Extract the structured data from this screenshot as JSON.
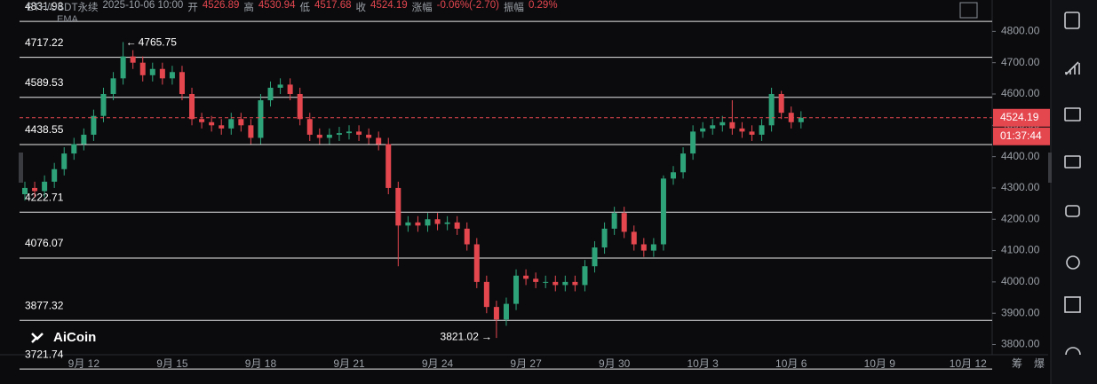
{
  "header": {
    "symbol": "ETH/USDT永续",
    "time": "2025-10-06 10:00",
    "fields": [
      {
        "label": "开",
        "value": 4526.89
      },
      {
        "label": "高",
        "value": 4530.94
      },
      {
        "label": "低",
        "value": 4517.68
      },
      {
        "label": "收",
        "value": 4524.19
      },
      {
        "label": "涨幅",
        "value": "-0.06%(-2.70)"
      },
      {
        "label": "振幅",
        "value": "0.29%"
      }
    ],
    "indicator": "EMA"
  },
  "logo": "AiCoin",
  "corner": [
    "筹",
    "爆"
  ],
  "chart_data": {
    "type": "candlestick",
    "categories": [
      null,
      null,
      null,
      null,
      null,
      null,
      "9月 12",
      null,
      null,
      null,
      null,
      null,
      null,
      null,
      null,
      "9月 15",
      null,
      null,
      null,
      null,
      null,
      null,
      null,
      null,
      "9月 18",
      null,
      null,
      null,
      null,
      null,
      null,
      null,
      null,
      "9月 21",
      null,
      null,
      null,
      null,
      null,
      null,
      null,
      null,
      "9月 24",
      null,
      null,
      null,
      null,
      null,
      null,
      null,
      null,
      "9月 27",
      null,
      null,
      null,
      null,
      null,
      null,
      null,
      null,
      "9月 30",
      null,
      null,
      null,
      null,
      null,
      null,
      null,
      null,
      "10月 3",
      null,
      null,
      null,
      null,
      null,
      null,
      null,
      null,
      "10月 6",
      null,
      null,
      null,
      null,
      null,
      null,
      null,
      null,
      "10月 9",
      null,
      null,
      null,
      null,
      null,
      null,
      null,
      null,
      "10月 12",
      null,
      null
    ],
    "open": [
      4280,
      4300,
      4290,
      4320,
      4360,
      4410,
      4440,
      4470,
      4530,
      4600,
      4650,
      4720,
      4700,
      4660,
      4680,
      4650,
      4670,
      4600,
      4520,
      4510,
      4500,
      4490,
      4520,
      4500,
      4460,
      4580,
      4620,
      4630,
      4600,
      4520,
      4470,
      4460,
      4470,
      4475,
      4480,
      4470,
      4460,
      4440,
      4300,
      4180,
      4190,
      4180,
      4200,
      4185,
      4190,
      4170,
      4120,
      4000,
      3920,
      3880,
      3930,
      4020,
      4010,
      4000,
      4000,
      3990,
      4000,
      3990,
      4050,
      4110,
      4170,
      4220,
      4160,
      4120,
      4100,
      4120,
      4330,
      4350,
      4410,
      4480,
      4490,
      4500,
      4510,
      4490,
      4480,
      4470,
      4500,
      4600,
      4540,
      4510,
      null,
      null,
      null,
      null,
      null,
      null,
      null,
      null,
      null,
      null,
      null,
      null,
      null,
      null,
      null,
      null,
      null,
      null,
      null
    ],
    "high": [
      4320,
      4320,
      4340,
      4380,
      4430,
      4460,
      4490,
      4550,
      4620,
      4670,
      4765.75,
      4740,
      4720,
      4700,
      4700,
      4690,
      4690,
      4620,
      4540,
      4530,
      4520,
      4540,
      4540,
      4520,
      4600,
      4640,
      4650,
      4650,
      4620,
      4540,
      4490,
      4490,
      4495,
      4500,
      4500,
      4490,
      4480,
      4460,
      4320,
      4210,
      4210,
      4220,
      4220,
      4210,
      4210,
      4190,
      4140,
      4020,
      3940,
      3950,
      4040,
      4040,
      4030,
      4020,
      4020,
      4020,
      4020,
      4070,
      4130,
      4190,
      4240,
      4240,
      4180,
      4140,
      4140,
      4340,
      4370,
      4430,
      4500,
      4510,
      4520,
      4530,
      4580,
      4510,
      4500,
      4520,
      4620,
      4610,
      4560,
      4545,
      null,
      null,
      null,
      null,
      null,
      null,
      null,
      null,
      null,
      null,
      null,
      null,
      null,
      null,
      null,
      null,
      null,
      null,
      null
    ],
    "low": [
      4260,
      4270,
      4270,
      4300,
      4340,
      4390,
      4420,
      4450,
      4510,
      4580,
      4630,
      4680,
      4640,
      4640,
      4630,
      4630,
      4580,
      4500,
      4490,
      4480,
      4470,
      4470,
      4480,
      4440,
      4440,
      4560,
      4600,
      4580,
      4500,
      4450,
      4440,
      4440,
      4450,
      4455,
      4450,
      4440,
      4420,
      4280,
      4050,
      4160,
      4160,
      4160,
      4165,
      4165,
      4150,
      4100,
      3980,
      3900,
      3821.02,
      3860,
      3910,
      3990,
      3980,
      3980,
      3970,
      3970,
      3970,
      3970,
      4030,
      4090,
      4150,
      4140,
      4100,
      4080,
      4080,
      4100,
      4310,
      4330,
      4390,
      4460,
      4470,
      4480,
      4470,
      4460,
      4450,
      4450,
      4480,
      4520,
      4490,
      4490,
      null,
      null,
      null,
      null,
      null,
      null,
      null,
      null,
      null,
      null,
      null,
      null,
      null,
      null,
      null,
      null,
      null,
      null,
      null
    ],
    "close": [
      4300,
      4290,
      4320,
      4360,
      4410,
      4440,
      4470,
      4530,
      4600,
      4650,
      4720,
      4700,
      4660,
      4680,
      4650,
      4670,
      4600,
      4520,
      4510,
      4500,
      4490,
      4520,
      4500,
      4460,
      4580,
      4620,
      4630,
      4600,
      4520,
      4470,
      4460,
      4470,
      4475,
      4480,
      4470,
      4460,
      4440,
      4300,
      4180,
      4190,
      4180,
      4200,
      4185,
      4190,
      4170,
      4120,
      4000,
      3920,
      3880,
      3930,
      4020,
      4010,
      4000,
      4000,
      3990,
      4000,
      3990,
      4050,
      4110,
      4170,
      4220,
      4160,
      4120,
      4100,
      4120,
      4330,
      4350,
      4410,
      4480,
      4490,
      4500,
      4510,
      4490,
      4480,
      4470,
      4500,
      4600,
      4540,
      4510,
      4524.19,
      null,
      null,
      null,
      null,
      null,
      null,
      null,
      null,
      null,
      null,
      null,
      null,
      null,
      null,
      null,
      null,
      null,
      null,
      null
    ],
    "up_color": "#2ea37a",
    "down_color": "#e5474f",
    "ylim": [
      3725,
      4835
    ],
    "yticks": [
      {
        "value": 3800,
        "label": "3800.00"
      },
      {
        "value": 3900,
        "label": "3900.00"
      },
      {
        "value": 4000,
        "label": "4000.00"
      },
      {
        "value": 4100,
        "label": "4100.00"
      },
      {
        "value": 4200,
        "label": "4200.00"
      },
      {
        "value": 4300,
        "label": "4300.00"
      },
      {
        "value": 4400,
        "label": "4400.00"
      },
      {
        "value": 4500,
        "label": "4500.00"
      },
      {
        "value": 4600,
        "label": "4600.00"
      },
      {
        "value": 4700,
        "label": "4700.00"
      },
      {
        "value": 4800,
        "label": "4800.00"
      }
    ],
    "levels": [
      4831.98,
      4717.22,
      4589.53,
      4438.55,
      4222.71,
      4076.07,
      3877.32,
      3721.74
    ],
    "countdown": "01:37:44"
  }
}
